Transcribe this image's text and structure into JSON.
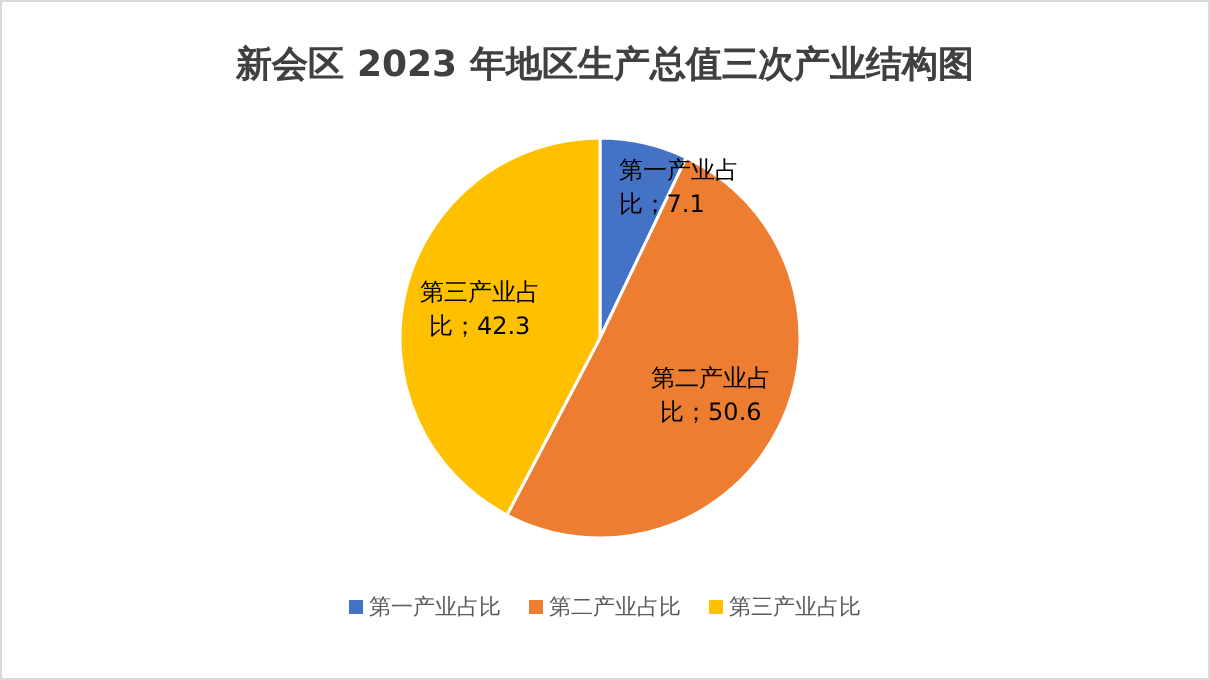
{
  "chart_data": {
    "type": "pie",
    "title": "新会区 2023 年地区生产总值三次产业结构图",
    "categories": [
      "第一产业占比",
      "第二产业占比",
      "第三产业占比"
    ],
    "values": [
      7.1,
      50.6,
      42.3
    ],
    "colors": [
      "#4472c4",
      "#ed7d31",
      "#ffc000"
    ],
    "value_labels": [
      "第一产业占比；7.1",
      "第二产业占比；50.6",
      "第三产业占比；42.3"
    ],
    "legend": "bottom"
  }
}
